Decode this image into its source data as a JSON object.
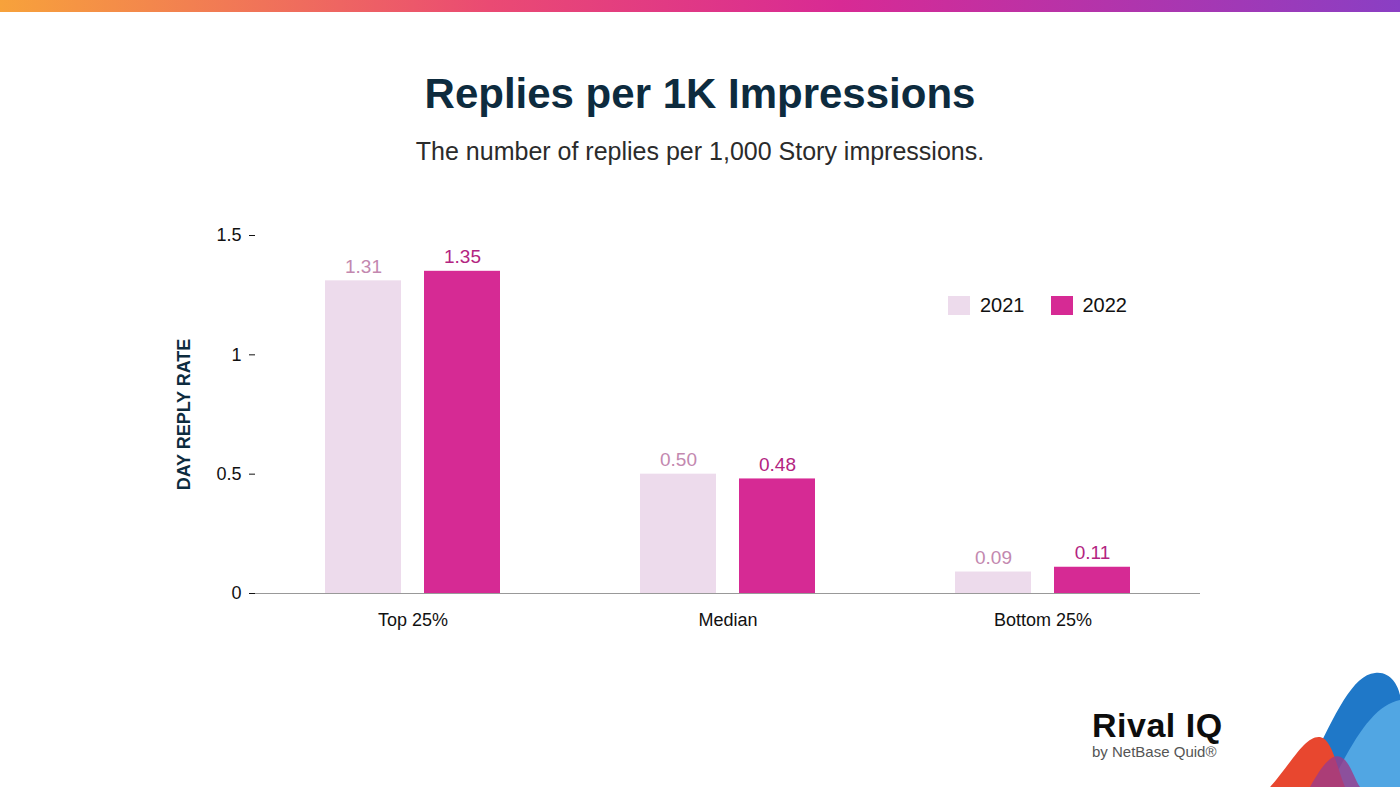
{
  "chart_data": {
    "type": "bar",
    "title": "Replies per 1K Impressions",
    "subtitle": "The number of replies per 1,000 Story impressions.",
    "y_label": "DAY REPLY RATE",
    "categories": [
      "Top 25%",
      "Median",
      "Bottom 25%"
    ],
    "series": [
      {
        "name": "2021",
        "color": "#eddbec",
        "values": [
          1.31,
          0.5,
          0.09
        ],
        "value_labels": [
          "1.31",
          "0.50",
          "0.09"
        ]
      },
      {
        "name": "2022",
        "color": "#d62a94",
        "values": [
          1.35,
          0.48,
          0.11
        ],
        "value_labels": [
          "1.35",
          "0.48",
          "0.11"
        ]
      }
    ],
    "ylim": [
      0,
      1.5
    ],
    "yticks": [
      0,
      0.5,
      1,
      1.5
    ],
    "grid": false,
    "legend": "top-right",
    "data_labels": true,
    "annotations": [
      "Rival IQ",
      "by NetBase Quid®"
    ]
  }
}
